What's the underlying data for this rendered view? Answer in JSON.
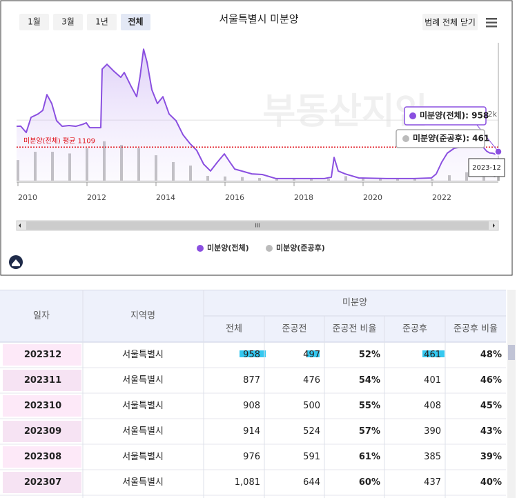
{
  "chart_data": {
    "type": "line",
    "title": "서울특별시 미분양",
    "buttons": [
      "1월",
      "3월",
      "1년",
      "전체"
    ],
    "active_button": "전체",
    "legend_toggle": "범례 전체 닫기",
    "watermark": "부동산지인",
    "xlim": [
      2009.96,
      2023.92
    ],
    "xticks": [
      2010,
      2012,
      2014,
      2016,
      2018,
      2020,
      2022
    ],
    "ylim": [
      0,
      4550
    ],
    "yticks": [
      0,
      {
        "value": 2000,
        "label": "2k"
      }
    ],
    "grid": true,
    "series": [
      {
        "name": "미분양(전체)",
        "color": "#8a4fe0",
        "x": [
          2009.96,
          2010.08,
          2010.24,
          2010.38,
          2010.58,
          2010.72,
          2010.84,
          2010.98,
          2011.12,
          2011.28,
          2011.48,
          2011.68,
          2011.88,
          2011.98,
          2012.08,
          2012.4,
          2012.44,
          2012.58,
          2012.78,
          2012.98,
          2013.08,
          2013.28,
          2013.44,
          2013.54,
          2013.64,
          2013.74,
          2013.88,
          2014.04,
          2014.2,
          2014.38,
          2014.58,
          2014.78,
          2014.98,
          2015.18,
          2015.38,
          2015.58,
          2015.78,
          2015.98,
          2016.14,
          2016.28,
          2016.48,
          2016.78,
          2017.08,
          2017.48,
          2017.88,
          2018.28,
          2018.88,
          2019.08,
          2019.16,
          2019.28,
          2019.48,
          2019.88,
          2020.68,
          2021.48,
          2021.98,
          2022.12,
          2022.28,
          2022.44,
          2022.64,
          2022.84,
          2023.0,
          2023.2,
          2023.4,
          2023.5,
          2023.58,
          2023.67,
          2023.75,
          2023.83,
          2023.92
        ],
        "values": [
          1795,
          1800,
          1590,
          2090,
          2200,
          2320,
          2840,
          2545,
          1980,
          1795,
          1820,
          1795,
          1860,
          1910,
          1750,
          1750,
          3680,
          3840,
          3610,
          3410,
          3570,
          3110,
          2770,
          3450,
          4340,
          3910,
          3000,
          2545,
          2770,
          2200,
          1980,
          1520,
          1230,
          1000,
          545,
          320,
          615,
          885,
          615,
          385,
          320,
          225,
          205,
          70,
          70,
          70,
          70,
          115,
          770,
          320,
          225,
          90,
          70,
          70,
          90,
          225,
          615,
          910,
          1070,
          1110,
          1230,
          1300,
          1410,
          1081,
          976,
          914,
          908,
          877,
          958
        ]
      },
      {
        "name": "미분양(준공후)",
        "color": "#bbbbbb",
        "type": "bar",
        "x": [
          2010.0,
          2010.5,
          2011.0,
          2011.5,
          2012.0,
          2012.5,
          2013.0,
          2013.5,
          2014.0,
          2014.5,
          2015.0,
          2015.5,
          2016.0,
          2016.5,
          2017.0,
          2017.5,
          2018.0,
          2018.5,
          2019.0,
          2019.5,
          2020.0,
          2020.5,
          2021.0,
          2021.5,
          2022.0,
          2022.5,
          2023.0,
          2023.5,
          2023.92
        ],
        "values": [
          680,
          955,
          955,
          900,
          1070,
          1300,
          1180,
          1070,
          840,
          615,
          500,
          160,
          140,
          120,
          90,
          60,
          50,
          50,
          60,
          150,
          90,
          60,
          50,
          50,
          60,
          180,
          280,
          437,
          461
        ]
      }
    ],
    "average": {
      "label": "미분양(전체) 평균 1109",
      "value": 1109,
      "color": "#e0101a"
    },
    "tooltip": {
      "date": "2023-12",
      "lines": [
        "미분양(전체): 958",
        "미분양(준공후): 461"
      ]
    }
  },
  "table": {
    "headers": [
      "일자",
      "지역명",
      "미분양"
    ],
    "subheaders": [
      "전체",
      "준공전",
      "준공전 비율",
      "준공후",
      "준공후 비율"
    ],
    "rows": [
      [
        "202312",
        "서울특별시",
        "958",
        "497",
        "52%",
        "461",
        "48%"
      ],
      [
        "202311",
        "서울특별시",
        "877",
        "476",
        "54%",
        "401",
        "46%"
      ],
      [
        "202310",
        "서울특별시",
        "908",
        "500",
        "55%",
        "408",
        "45%"
      ],
      [
        "202309",
        "서울특별시",
        "914",
        "524",
        "57%",
        "390",
        "43%"
      ],
      [
        "202308",
        "서울특별시",
        "976",
        "591",
        "61%",
        "385",
        "39%"
      ],
      [
        "202307",
        "서울특별시",
        "1,081",
        "644",
        "60%",
        "437",
        "40%"
      ]
    ]
  }
}
